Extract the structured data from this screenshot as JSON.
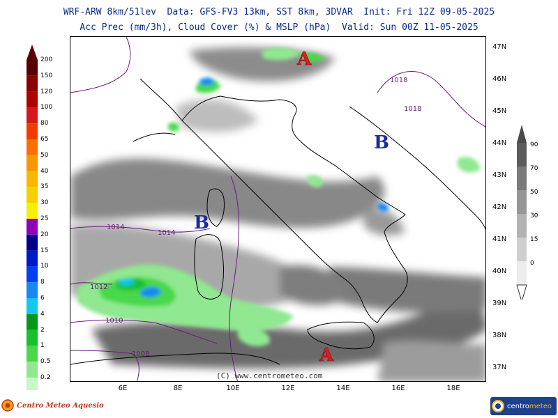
{
  "header": {
    "line1": "WRF-ARW 8km/51lev  Data: GFS-FV3 13km, SST 8km, 3DVAR  Init: Fri 12Z 09-05-2025",
    "line2": "Acc Prec (mm/3h), Cloud Cover (%) & MSLP (hPa)  Valid: Sun 00Z 11-05-2025"
  },
  "precip_scale": {
    "labels": [
      "200",
      "150",
      "120",
      "100",
      "80",
      "65",
      "50",
      "40",
      "35",
      "30",
      "25",
      "20",
      "15",
      "10",
      "8",
      "6",
      "4",
      "2",
      "1",
      "0.5",
      "0.2"
    ],
    "colors": [
      "#5a0000",
      "#8b0000",
      "#b00000",
      "#d81818",
      "#f03c00",
      "#f87000",
      "#f89800",
      "#f8b800",
      "#f8d000",
      "#f8f000",
      "#9000b8",
      "#000090",
      "#0018c8",
      "#0040f0",
      "#1888f0",
      "#10c8f0",
      "#009818",
      "#18c030",
      "#48d848",
      "#90e890",
      "#c8f8c8"
    ]
  },
  "cloud_scale": {
    "labels": [
      "90",
      "70",
      "50",
      "30",
      "15",
      "0"
    ],
    "colors": [
      "#5c5c5c",
      "#7a7a7a",
      "#969696",
      "#b2b2b2",
      "#cfcfcf",
      "#ececec"
    ]
  },
  "lat_labels": [
    "47N",
    "46N",
    "45N",
    "44N",
    "43N",
    "42N",
    "41N",
    "40N",
    "39N",
    "38N",
    "37N"
  ],
  "lon_labels": [
    "6E",
    "8E",
    "10E",
    "12E",
    "14E",
    "16E",
    "18E"
  ],
  "isobar_labels": [
    "1018",
    "1018",
    "1014",
    "1014",
    "1012",
    "1010",
    "1008"
  ],
  "pressure_centers": [
    "A",
    "B",
    "B",
    "A"
  ],
  "copyright": "(C) www.centrometeo.com",
  "logo_left": "Centro Meteo Aquesio",
  "logo_right": {
    "part1": "centro",
    "part2": "meteo"
  },
  "colors": {
    "title": "#0a2a8c",
    "high": "#d42020",
    "low": "#1a2a9a",
    "isobar": "#6a1a7a"
  }
}
